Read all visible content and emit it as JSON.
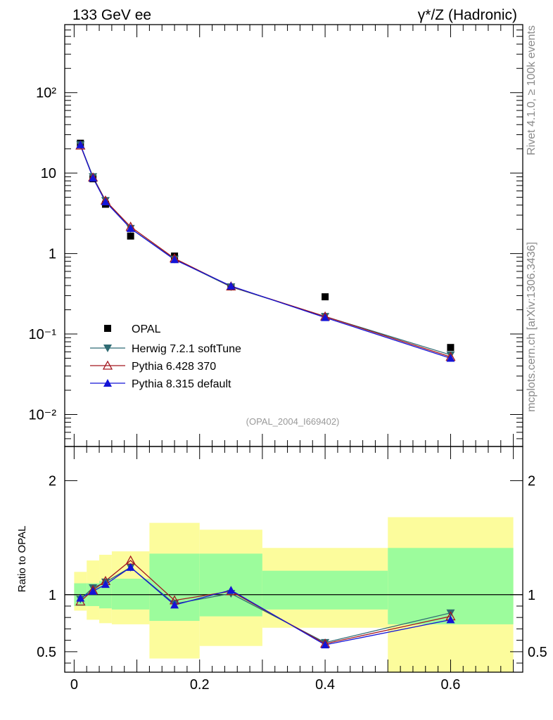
{
  "header": {
    "left": "133 GeV ee",
    "right": "γ*/Z (Hadronic)"
  },
  "side_labels": {
    "rivet": "Rivet 4.1.0, ≥ 100k events",
    "mcplots": "mcplots.cern.ch [arXiv:1306.3436]"
  },
  "analysis_id": "(OPAL_2004_I669402)",
  "chart_data": [
    {
      "type": "scatter",
      "panel": "main",
      "yscale": "log",
      "xlim": [
        -0.015,
        0.715
      ],
      "ylim": [
        0.004,
        700
      ],
      "xlabel": "",
      "ylabel": "",
      "ytick_labels": [
        "10⁻²",
        "10⁻¹",
        "1",
        "10",
        "10²"
      ],
      "ytick_values": [
        0.01,
        0.1,
        1,
        10,
        100
      ],
      "legend_position": "middle-left",
      "series": [
        {
          "name": "OPAL",
          "color": "#000000",
          "marker": "square",
          "x": [
            0.01,
            0.03,
            0.05,
            0.09,
            0.16,
            0.25,
            0.4,
            0.6
          ],
          "y": [
            23.5,
            8.5,
            4.1,
            1.65,
            0.93,
            0.385,
            0.29,
            0.068
          ]
        },
        {
          "name": "Herwig 7.2.1 softTune",
          "color": "#2f6b73",
          "marker": "triangle-down",
          "x": [
            0.01,
            0.03,
            0.05,
            0.09,
            0.16,
            0.25,
            0.4,
            0.6
          ],
          "y": [
            22.5,
            9.0,
            4.55,
            2.05,
            0.85,
            0.385,
            0.165,
            0.055
          ]
        },
        {
          "name": "Pythia 6.428 370",
          "color": "#a3171f",
          "marker": "triangle-up-open",
          "x": [
            0.01,
            0.03,
            0.05,
            0.09,
            0.16,
            0.25,
            0.4,
            0.6
          ],
          "y": [
            22.0,
            8.8,
            4.55,
            2.15,
            0.87,
            0.39,
            0.165,
            0.052
          ]
        },
        {
          "name": "Pythia 8.315 default",
          "color": "#1414d6",
          "marker": "triangle-up",
          "x": [
            0.01,
            0.03,
            0.05,
            0.09,
            0.16,
            0.25,
            0.4,
            0.6
          ],
          "y": [
            22.5,
            8.7,
            4.4,
            2.05,
            0.84,
            0.395,
            0.16,
            0.05
          ]
        }
      ]
    },
    {
      "type": "line",
      "panel": "ratio",
      "xlim": [
        -0.015,
        0.715
      ],
      "ylim": [
        0.32,
        2.3
      ],
      "ylabel": "Ratio to OPAL",
      "xtick_labels": [
        "0",
        "0.2",
        "0.4",
        "0.6"
      ],
      "xtick_values": [
        0,
        0.2,
        0.4,
        0.6
      ],
      "ytick_labels": [
        "0.5",
        "1",
        "2"
      ],
      "ytick_values": [
        0.5,
        1,
        2
      ],
      "uncertainty_bands": {
        "bin_edges": [
          0.0,
          0.02,
          0.04,
          0.06,
          0.12,
          0.2,
          0.3,
          0.5,
          0.7
        ],
        "green_low": [
          0.9,
          0.9,
          0.88,
          0.87,
          0.77,
          0.81,
          0.87,
          0.74
        ],
        "green_high": [
          1.1,
          1.1,
          1.12,
          1.14,
          1.36,
          1.36,
          1.21,
          1.41
        ],
        "yellow_low": [
          0.86,
          0.78,
          0.75,
          0.74,
          0.44,
          0.55,
          0.71,
          0.32
        ],
        "yellow_high": [
          1.2,
          1.3,
          1.35,
          1.38,
          1.63,
          1.57,
          1.41,
          1.68
        ],
        "green_color": "#9cfc9c",
        "yellow_color": "#fcfc9c"
      },
      "series": [
        {
          "name": "Herwig 7.2.1 softTune",
          "color": "#2f6b73",
          "marker": "triangle-down",
          "x": [
            0.01,
            0.03,
            0.05,
            0.09,
            0.16,
            0.25,
            0.4,
            0.6
          ],
          "y": [
            0.96,
            1.06,
            1.11,
            1.24,
            0.92,
            1.01,
            0.58,
            0.84
          ]
        },
        {
          "name": "Pythia 6.428 370",
          "color": "#a3171f",
          "marker": "triangle-up-open",
          "x": [
            0.01,
            0.03,
            0.05,
            0.09,
            0.16,
            0.25,
            0.4,
            0.6
          ],
          "y": [
            0.94,
            1.04,
            1.12,
            1.3,
            0.95,
            1.03,
            0.57,
            0.81
          ]
        },
        {
          "name": "Pythia 8.315 default",
          "color": "#1414d6",
          "marker": "triangle-up",
          "x": [
            0.01,
            0.03,
            0.05,
            0.09,
            0.16,
            0.25,
            0.4,
            0.6
          ],
          "y": [
            0.97,
            1.03,
            1.09,
            1.24,
            0.91,
            1.04,
            0.56,
            0.78
          ]
        }
      ]
    }
  ]
}
